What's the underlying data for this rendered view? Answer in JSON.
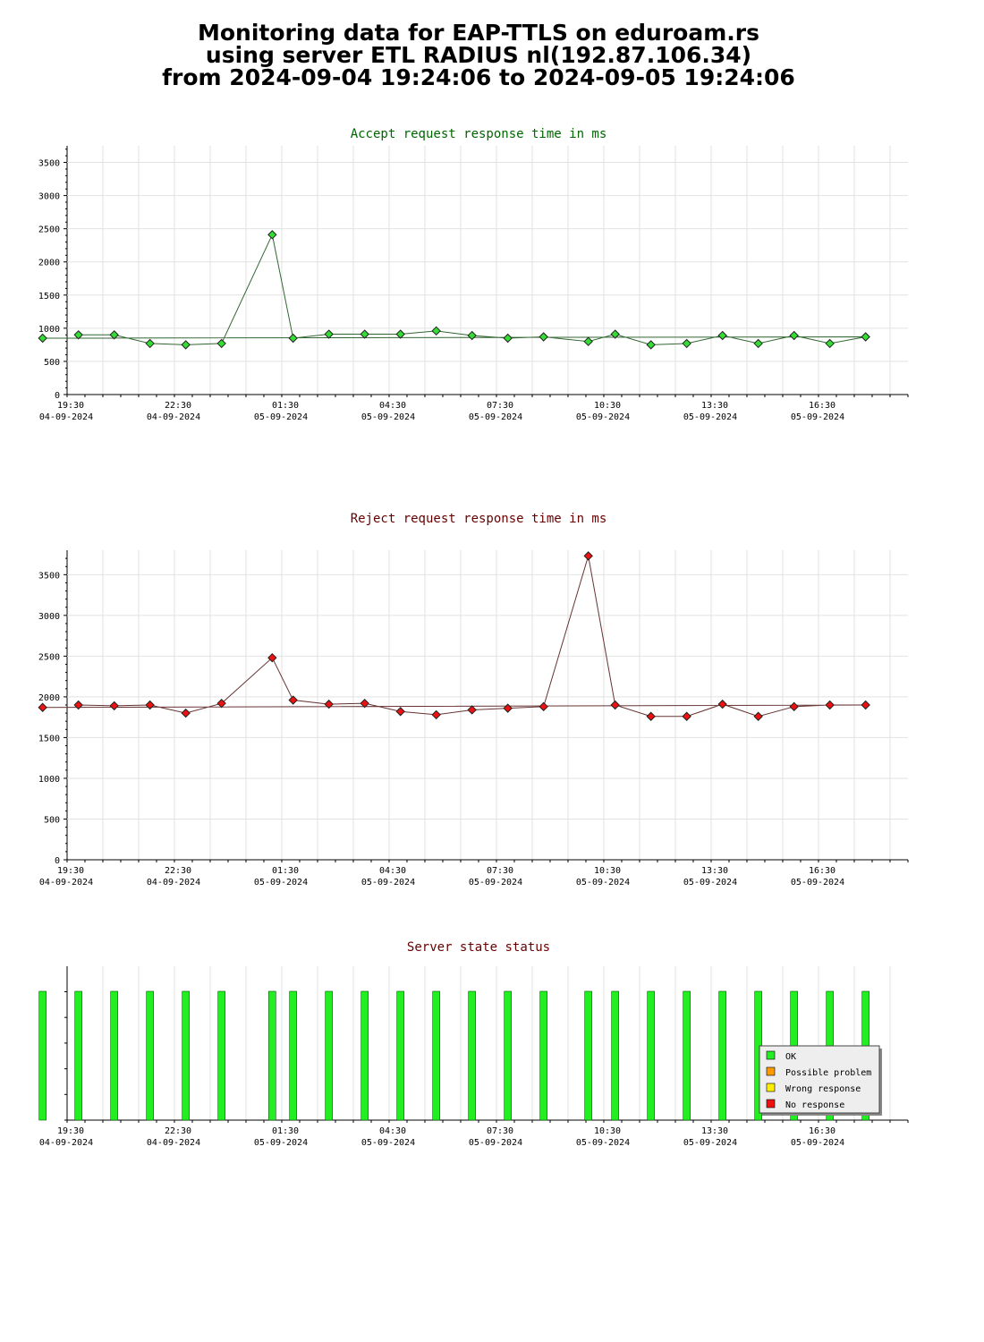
{
  "header": {
    "line1": "Monitoring data for EAP-TTLS on eduroam.rs",
    "line2": "using server ETL RADIUS nl(192.87.106.34)",
    "line3": "from 2024-09-04 19:24:06 to 2024-09-05 19:24:06"
  },
  "chart_data": [
    {
      "type": "line",
      "title": "Accept request response time in ms",
      "title_color": "#006600",
      "marker_color": "#33dd33",
      "line_color": "#336633",
      "ylim": [
        0,
        3750
      ],
      "y_ticks": [
        "0",
        "500",
        "1000",
        "1500",
        "2000",
        "2500",
        "3000",
        "3500"
      ],
      "x_labels": [
        {
          "time": "19:30",
          "date": "04-09-2024"
        },
        {
          "time": "22:30",
          "date": "04-09-2024"
        },
        {
          "time": "01:30",
          "date": "05-09-2024"
        },
        {
          "time": "04:30",
          "date": "05-09-2024"
        },
        {
          "time": "07:30",
          "date": "05-09-2024"
        },
        {
          "time": "10:30",
          "date": "05-09-2024"
        },
        {
          "time": "13:30",
          "date": "05-09-2024"
        },
        {
          "time": "16:30",
          "date": "05-09-2024"
        }
      ],
      "grid": true,
      "series": [
        {
          "x": [
            "19:40",
            "20:40",
            "21:40",
            "22:40",
            "23:40",
            "01:05",
            "01:40",
            "02:40",
            "03:40",
            "04:40",
            "05:40",
            "06:40",
            "07:40",
            "08:40",
            "09:55",
            "10:40",
            "11:40",
            "12:40",
            "13:40",
            "14:40",
            "15:40",
            "16:40",
            "17:40",
            "18:40"
          ],
          "values": [
            900,
            900,
            770,
            750,
            770,
            2410,
            850,
            910,
            910,
            910,
            960,
            890,
            850,
            870,
            800,
            910,
            750,
            770,
            890,
            770,
            890,
            770,
            870,
            850
          ]
        }
      ]
    },
    {
      "type": "line",
      "title": "Reject request response time in ms",
      "title_color": "#660000",
      "marker_color": "#ee1111",
      "line_color": "#663333",
      "ylim": [
        0,
        3800
      ],
      "y_ticks": [
        "0",
        "500",
        "1000",
        "1500",
        "2000",
        "2500",
        "3000",
        "3500"
      ],
      "x_labels": [
        {
          "time": "19:30",
          "date": "04-09-2024"
        },
        {
          "time": "22:30",
          "date": "04-09-2024"
        },
        {
          "time": "01:30",
          "date": "05-09-2024"
        },
        {
          "time": "04:30",
          "date": "05-09-2024"
        },
        {
          "time": "07:30",
          "date": "05-09-2024"
        },
        {
          "time": "10:30",
          "date": "05-09-2024"
        },
        {
          "time": "13:30",
          "date": "05-09-2024"
        },
        {
          "time": "16:30",
          "date": "05-09-2024"
        }
      ],
      "grid": true,
      "series": [
        {
          "x": [
            "19:40",
            "20:40",
            "21:40",
            "22:40",
            "23:40",
            "01:05",
            "01:40",
            "02:40",
            "03:40",
            "04:40",
            "05:40",
            "06:40",
            "07:40",
            "08:40",
            "09:55",
            "10:40",
            "11:40",
            "12:40",
            "13:40",
            "14:40",
            "15:40",
            "16:40",
            "17:40",
            "18:40"
          ],
          "values": [
            1900,
            1890,
            1900,
            1800,
            1920,
            2480,
            1960,
            1910,
            1920,
            1820,
            1780,
            1840,
            1860,
            1880,
            3730,
            1900,
            1760,
            1760,
            1910,
            1760,
            1880,
            1900,
            1900,
            1870
          ]
        }
      ]
    },
    {
      "type": "bar",
      "title": "Server state status",
      "title_color": "#660000",
      "x_labels": [
        {
          "time": "19:30",
          "date": "04-09-2024"
        },
        {
          "time": "22:30",
          "date": "04-09-2024"
        },
        {
          "time": "01:30",
          "date": "05-09-2024"
        },
        {
          "time": "04:30",
          "date": "05-09-2024"
        },
        {
          "time": "07:30",
          "date": "05-09-2024"
        },
        {
          "time": "10:30",
          "date": "05-09-2024"
        },
        {
          "time": "13:30",
          "date": "05-09-2024"
        },
        {
          "time": "16:30",
          "date": "05-09-2024"
        }
      ],
      "x": [
        "19:40",
        "20:40",
        "21:40",
        "22:40",
        "23:40",
        "01:05",
        "01:40",
        "02:40",
        "03:40",
        "04:40",
        "05:40",
        "06:40",
        "07:40",
        "08:40",
        "09:55",
        "10:40",
        "11:40",
        "12:40",
        "13:40",
        "14:40",
        "15:40",
        "16:40",
        "17:40",
        "18:40"
      ],
      "states": [
        "OK",
        "OK",
        "OK",
        "OK",
        "OK",
        "OK",
        "OK",
        "OK",
        "OK",
        "OK",
        "OK",
        "OK",
        "OK",
        "OK",
        "OK",
        "OK",
        "OK",
        "OK",
        "OK",
        "OK",
        "OK",
        "OK",
        "OK",
        "OK"
      ],
      "legend_position": "bottom-right",
      "legend": [
        {
          "label": "OK",
          "color": "#22ee22"
        },
        {
          "label": "Possible problem",
          "color": "#ff9900"
        },
        {
          "label": "Wrong response",
          "color": "#ffee00"
        },
        {
          "label": "No response",
          "color": "#ee1111"
        }
      ]
    }
  ]
}
